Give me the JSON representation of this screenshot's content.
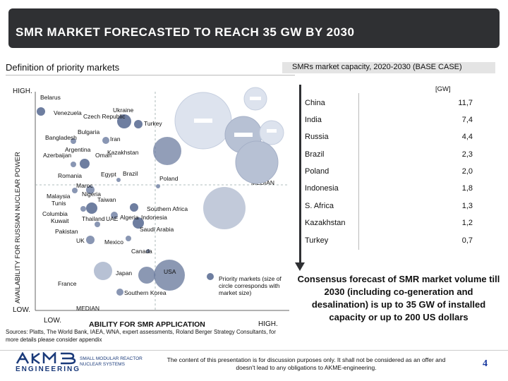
{
  "header": {
    "title": "SMR MARKET FORECASTED TO REACH 35 GW BY 2030"
  },
  "sections": {
    "left_title": "Definition of priority markets",
    "right_title": "SMRs market capacity, 2020-2030 (BASE CASE)"
  },
  "matrix": {
    "y_axis_label": "AVAILABILITY FOR RUSSIAN NUCLEAR POWER",
    "x_axis_label": "ABILITY FOR SMR APPLICATION",
    "y_high": "HIGH.",
    "y_low": "LOW.",
    "x_low": "LOW.",
    "x_high": "HIGH.",
    "median_h": "MEDIAN",
    "median_v": "MEDIAN",
    "legend_note": "Priority markets (size of circle corresponds with market size)",
    "bubble_labels": {
      "belarus": "Belarus",
      "venezuela": "Venezuela",
      "ukraine": "Ukraine",
      "czech_republic": "Czech Republic",
      "turkey": "Turkey",
      "bulgaria": "Bulgaria",
      "bangladesh": "Bangladesh",
      "iran": "Iran",
      "argentina": "Argentina",
      "azerbaijan": "Azerbaijan",
      "oman": "Oman",
      "kazakhstan": "Kazakhstan",
      "romania": "Romania",
      "egypt": "Egypt",
      "brazil": "Brazil",
      "poland": "Poland",
      "maroc": "Maroc",
      "malaysia": "Malaysia",
      "nigeria": "Nigeria",
      "tunis": "Tunis",
      "taiwan": "Taiwan",
      "southern_africa": "Southern Africa",
      "columbia": "Columbia",
      "kuwait": "Kuwait",
      "thailand": "Thailand",
      "uae": "UAE",
      "algeria": "Algeria",
      "indonesia": "Indonesia",
      "pakistan": "Pakistan",
      "saudi_arabia": "Saudi Arabia",
      "uk": "UK",
      "mexico": "Mexico",
      "canada": "Canada",
      "japan": "Japan",
      "usa": "USA",
      "france": "France",
      "southern_korea": "Southern Korea"
    }
  },
  "sources": "Sources: Platts, The World Bank, IAEA, WNA, expert assessments, Roland Berger Strategy Consultants, for more details please consider appendix",
  "capacity": {
    "unit": "[GW]",
    "rows": [
      {
        "country": "China",
        "value": "11,7"
      },
      {
        "country": "India",
        "value": "7,4"
      },
      {
        "country": "Russia",
        "value": "4,4"
      },
      {
        "country": "Brazil",
        "value": "2,3"
      },
      {
        "country": "Poland",
        "value": "2,0"
      },
      {
        "country": "Indonesia",
        "value": "1,8"
      },
      {
        "country": "S. Africa",
        "value": "1,3"
      },
      {
        "country": "Kazakhstan",
        "value": "1,2"
      },
      {
        "country": "Turkey",
        "value": "0,7"
      }
    ]
  },
  "consensus": "Consensus forecast of SMR market volume till 2030 (including co-generation and desalination) is up to 35 GW of installed capacity or up to 200 US dollars",
  "footer": {
    "logo_name": "ENGINEERING",
    "logo_tagline": "SMALL MODULAR REACTOR NUCLEAR SYSTEMS",
    "disclaimer": "The content of this presentation is for discussion purposes only. It shall not be considered as an offer and doesn't lead to any obligations to AKME-engineering.",
    "page_number": "4"
  },
  "colors": {
    "title_bar": "#2f3033",
    "bubble_light": "#dde3ee",
    "bubble_mid": "#b7c1d4",
    "bubble_dark": "#6e7ea0",
    "accent_blue": "#1a3a7a"
  }
}
